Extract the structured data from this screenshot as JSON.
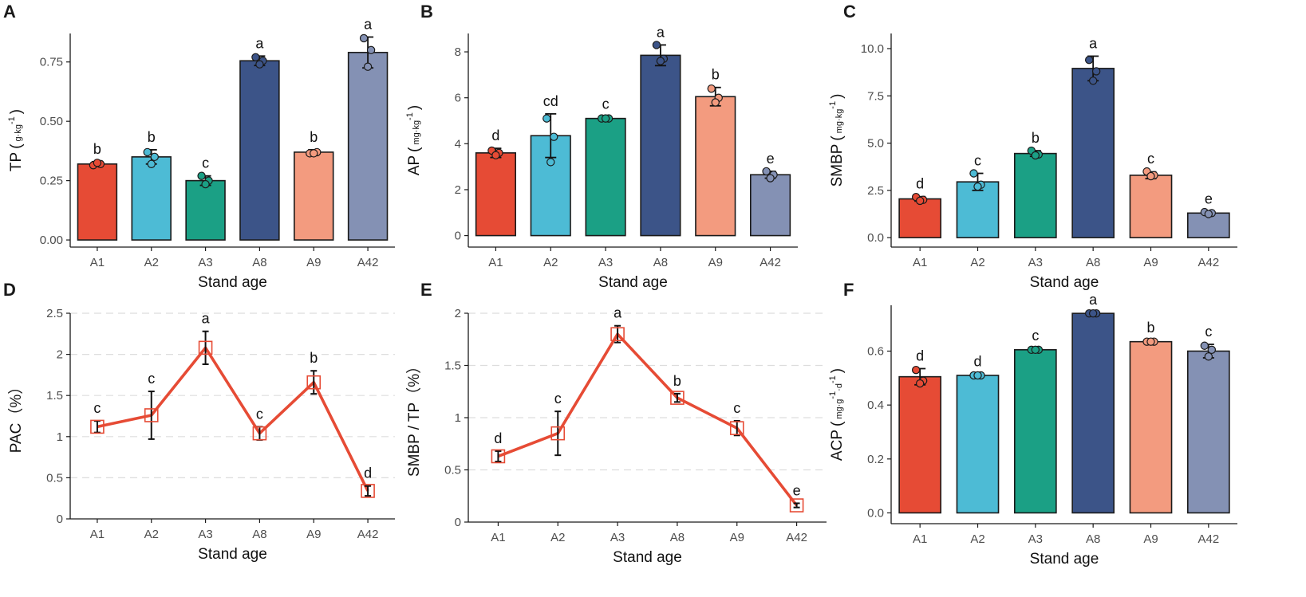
{
  "chart_data": [
    {
      "panel": "A",
      "type": "bar",
      "categories": [
        "A1",
        "A2",
        "A3",
        "A8",
        "A9",
        "A42"
      ],
      "values": [
        0.32,
        0.35,
        0.25,
        0.755,
        0.37,
        0.79
      ],
      "errors": [
        0.01,
        0.03,
        0.02,
        0.02,
        0.01,
        0.065
      ],
      "letters": [
        "b",
        "b",
        "c",
        "a",
        "b",
        "a"
      ],
      "points": [
        [
          0.315,
          0.32,
          0.325
        ],
        [
          0.37,
          0.35,
          0.32
        ],
        [
          0.27,
          0.25,
          0.235
        ],
        [
          0.77,
          0.755,
          0.74
        ],
        [
          0.365,
          0.37,
          0.365
        ],
        [
          0.85,
          0.8,
          0.73
        ]
      ],
      "ylabel_main": "TP",
      "ylabel_unit": "g·kg",
      "ylabel_sup": "-1",
      "xlabel": "Stand age",
      "yticks": [
        0.0,
        0.25,
        0.5,
        0.75
      ],
      "ytick_labels": [
        "0.00",
        "0.25",
        "0.50",
        "0.75"
      ],
      "ylim": [
        -0.03,
        0.87
      ],
      "grid": false
    },
    {
      "panel": "B",
      "type": "bar",
      "categories": [
        "A1",
        "A2",
        "A3",
        "A8",
        "A9",
        "A42"
      ],
      "values": [
        3.6,
        4.35,
        5.1,
        7.85,
        6.05,
        2.65
      ],
      "errors": [
        0.2,
        0.95,
        0.08,
        0.45,
        0.4,
        0.15
      ],
      "letters": [
        "d",
        "cd",
        "c",
        "a",
        "b",
        "e"
      ],
      "points": [
        [
          3.7,
          3.6,
          3.5
        ],
        [
          5.1,
          4.3,
          3.2
        ],
        [
          5.1,
          5.1,
          5.1
        ],
        [
          8.3,
          7.7,
          7.6
        ],
        [
          6.4,
          6.0,
          5.8
        ],
        [
          2.8,
          2.65,
          2.5
        ]
      ],
      "ylabel_main": "AP",
      "ylabel_unit": "mg·kg",
      "ylabel_sup": "-1",
      "xlabel": "Stand age",
      "yticks": [
        0,
        2,
        4,
        6,
        8
      ],
      "ytick_labels": [
        "0",
        "2",
        "4",
        "6",
        "8"
      ],
      "ylim": [
        -0.5,
        8.8
      ],
      "grid": false
    },
    {
      "panel": "C",
      "type": "bar",
      "categories": [
        "A1",
        "A2",
        "A3",
        "A8",
        "A9",
        "A42"
      ],
      "values": [
        2.05,
        2.95,
        4.45,
        8.95,
        3.3,
        1.3
      ],
      "errors": [
        0.12,
        0.45,
        0.15,
        0.65,
        0.18,
        0.08
      ],
      "letters": [
        "d",
        "c",
        "b",
        "a",
        "c",
        "e"
      ],
      "points": [
        [
          2.15,
          2.0,
          1.95
        ],
        [
          3.4,
          2.8,
          2.7
        ],
        [
          4.6,
          4.4,
          4.35
        ],
        [
          9.4,
          8.8,
          8.3
        ],
        [
          3.5,
          3.3,
          3.25
        ],
        [
          1.35,
          1.3,
          1.25
        ]
      ],
      "ylabel_main": "SMBP",
      "ylabel_unit": "mg·kg",
      "ylabel_sup": "-1",
      "xlabel": "Stand age",
      "yticks": [
        0.0,
        2.5,
        5.0,
        7.5,
        10.0
      ],
      "ytick_labels": [
        "0.0",
        "2.5",
        "5.0",
        "7.5",
        "10.0"
      ],
      "ylim": [
        -0.5,
        10.8
      ],
      "grid": false
    },
    {
      "panel": "D",
      "type": "line",
      "categories": [
        "A1",
        "A2",
        "A3",
        "A8",
        "A9",
        "A42"
      ],
      "values": [
        1.12,
        1.26,
        2.08,
        1.04,
        1.66,
        0.34
      ],
      "errors": [
        0.07,
        0.29,
        0.2,
        0.08,
        0.14,
        0.06
      ],
      "letters": [
        "c",
        "c",
        "a",
        "c",
        "b",
        "d"
      ],
      "ylabel_main": "PAC（%）",
      "xlabel": "Stand age",
      "yticks": [
        0,
        0.5,
        1,
        1.5,
        2,
        2.5
      ],
      "ytick_labels": [
        "0",
        "0.5",
        "1",
        "1.5",
        "2",
        "2.5"
      ],
      "ylim": [
        0,
        2.5
      ],
      "grid": true
    },
    {
      "panel": "E",
      "type": "line",
      "categories": [
        "A1",
        "A2",
        "A3",
        "A8",
        "A9",
        "A42"
      ],
      "values": [
        0.63,
        0.85,
        1.8,
        1.19,
        0.9,
        0.16
      ],
      "errors": [
        0.05,
        0.21,
        0.08,
        0.04,
        0.07,
        0.02
      ],
      "letters": [
        "d",
        "c",
        "a",
        "b",
        "c",
        "e"
      ],
      "ylabel_main": "SMBP / TP（%）",
      "xlabel": "Stand age",
      "yticks": [
        0,
        0.5,
        1,
        1.5,
        2
      ],
      "ytick_labels": [
        "0",
        "0.5",
        "1",
        "1.5",
        "2"
      ],
      "ylim": [
        0,
        2
      ],
      "grid": true
    },
    {
      "panel": "F",
      "type": "bar",
      "categories": [
        "A1",
        "A2",
        "A3",
        "A8",
        "A9",
        "A42"
      ],
      "values": [
        0.505,
        0.51,
        0.605,
        0.74,
        0.635,
        0.6
      ],
      "errors": [
        0.03,
        0.005,
        0.005,
        0.003,
        0.005,
        0.025
      ],
      "letters": [
        "d",
        "d",
        "c",
        "a",
        "b",
        "c"
      ],
      "points": [
        [
          0.53,
          0.49,
          0.48
        ],
        [
          0.51,
          0.51,
          0.51
        ],
        [
          0.605,
          0.605,
          0.605
        ],
        [
          0.74,
          0.74,
          0.74
        ],
        [
          0.635,
          0.635,
          0.635
        ],
        [
          0.62,
          0.605,
          0.58
        ]
      ],
      "ylabel_main": "ACP",
      "ylabel_unit": "mg·g",
      "ylabel_sup": "-1",
      "ylabel_unit2": "·d",
      "ylabel_sup2": "-1",
      "xlabel": "Stand age",
      "yticks": [
        0.0,
        0.2,
        0.4,
        0.6
      ],
      "ytick_labels": [
        "0.0",
        "0.2",
        "0.4",
        "0.6"
      ],
      "ylim": [
        -0.04,
        0.77
      ],
      "grid": false
    }
  ],
  "colors": {
    "A1": "#E64B35",
    "A2": "#4DBBD5",
    "A3": "#1BA085",
    "A8": "#3C5488",
    "A9": "#F39B7F",
    "A42": "#8491B4",
    "line": "#E64B35",
    "grid": "#dddddd",
    "axis": "#1a1a1a"
  }
}
